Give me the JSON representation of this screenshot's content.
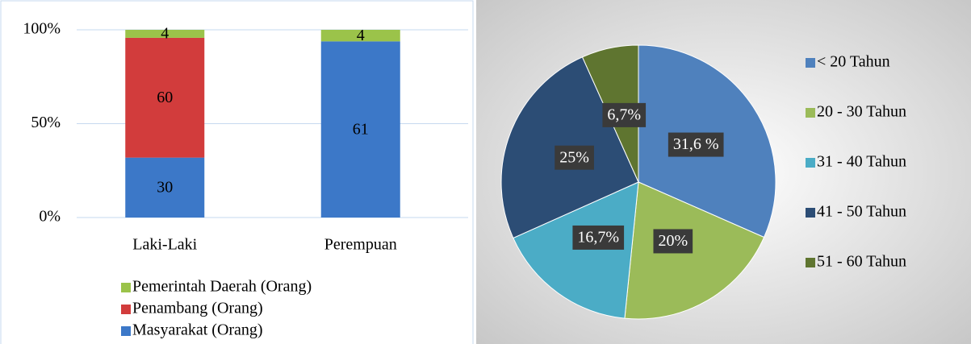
{
  "chart_data": [
    {
      "type": "bar",
      "stacking": "percent",
      "categories": [
        "Laki-Laki",
        "Perempuan"
      ],
      "series": [
        {
          "name": "Masyarakat (Orang)",
          "color": "#3c78c8",
          "values": [
            30,
            61
          ]
        },
        {
          "name": "Penambang (Orang)",
          "color": "#d23c3c",
          "values": [
            60,
            null
          ]
        },
        {
          "name": "Pemerintah Daerah (Orang)",
          "color": "#9bc34a",
          "values": [
            4,
            4
          ]
        }
      ],
      "ylim": [
        0,
        100
      ],
      "yticks": [
        {
          "value": 0,
          "label": "0%"
        },
        {
          "value": 50,
          "label": "50%"
        },
        {
          "value": 100,
          "label": "100%"
        }
      ],
      "grid": true
    },
    {
      "type": "pie",
      "categories": [
        "< 20 Tahun",
        "20 - 30 Tahun",
        "31 - 40 Tahun",
        "41 - 50 Tahun",
        "51 - 60 Tahun"
      ],
      "values": [
        31.6,
        20,
        16.7,
        25,
        6.7
      ],
      "value_labels": [
        "31,6 %",
        "20%",
        "16,7%",
        "25%",
        "6,7%"
      ],
      "colors": [
        "#4f81bd",
        "#9bbb59",
        "#4bacc6",
        "#2c4d75",
        "#5f7530"
      ],
      "legend": "right"
    }
  ]
}
